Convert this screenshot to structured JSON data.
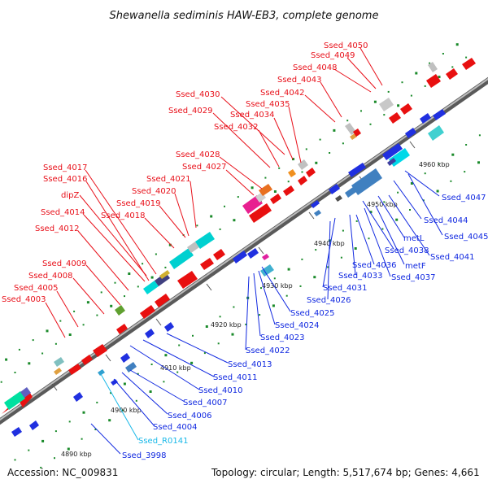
{
  "title": "Shewanella sediminis HAW-EB3, complete genome",
  "footer": {
    "accession": "Accession: NC_009831",
    "topology": "Topology: circular; Length: 5,517,674 bp; Genes: 4,661"
  },
  "colors": {
    "forward_label": "#e8101a",
    "reverse_label": "#1028e0",
    "rna_label": "#18b8e8",
    "backbone": "#8a8a8a"
  },
  "kbp_marks": [
    {
      "text": "4890 kbp"
    },
    {
      "text": "4900 kbp"
    },
    {
      "text": "4910 kbp"
    },
    {
      "text": "4920 kbp"
    },
    {
      "text": "4930 kbp"
    },
    {
      "text": "4940 kbp"
    },
    {
      "text": "4950 kbp"
    },
    {
      "text": "4960 kbp"
    }
  ],
  "forward_genes": [
    "Ssed_4050",
    "Ssed_4049",
    "Ssed_4048",
    "Ssed_4043",
    "Ssed_4042",
    "Ssed_4035",
    "Ssed_4030",
    "Ssed_4034",
    "Ssed_4029",
    "Ssed_4032",
    "Ssed_4028",
    "Ssed_4027",
    "Ssed_4017",
    "Ssed_4021",
    "Ssed_4016",
    "Ssed_4020",
    "dipZ",
    "Ssed_4019",
    "Ssed_4018",
    "Ssed_4014",
    "Ssed_4012",
    "Ssed_4009",
    "Ssed_4008",
    "Ssed_4005",
    "Ssed_4003"
  ],
  "reverse_genes": [
    "Ssed_4047",
    "Ssed_4044",
    "Ssed_4045",
    "metL",
    "Ssed_4041",
    "Ssed_4038",
    "metF",
    "Ssed_4036",
    "Ssed_4037",
    "Ssed_4033",
    "Ssed_4031",
    "Ssed_4026",
    "Ssed_4025",
    "Ssed_4024",
    "Ssed_4023",
    "Ssed_4022",
    "Ssed_4013",
    "Ssed_4011",
    "Ssed_4010",
    "Ssed_4007",
    "Ssed_4006",
    "Ssed_4004",
    "Ssed_3998"
  ],
  "rna_genes": [
    "Ssed_R0141"
  ]
}
